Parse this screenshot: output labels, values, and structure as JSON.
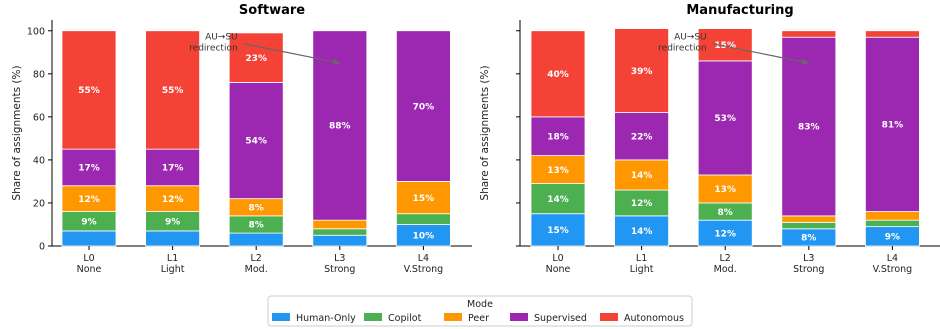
{
  "colors": {
    "Human-Only": "#2196f3",
    "Copilot": "#4caf50",
    "Peer": "#ff9800",
    "Supervised": "#9c27b0",
    "Autonomous": "#f44336",
    "arrow": "#666666"
  },
  "legend": {
    "title": "Mode",
    "items": [
      "Human-Only",
      "Copilot",
      "Peer",
      "Supervised",
      "Autonomous"
    ]
  },
  "chart_data": [
    {
      "type": "bar",
      "stacked": true,
      "title": "Software",
      "ylabel": "Share of assignments (%)",
      "ylim": [
        0,
        105
      ],
      "yticks": [
        0,
        20,
        40,
        60,
        80,
        100
      ],
      "categories": [
        "L0\nNone",
        "L1\nLight",
        "L2\nMod.",
        "L3\nStrong",
        "L4\nV.Strong"
      ],
      "series": [
        {
          "name": "Human-Only",
          "values": [
            7,
            7,
            6,
            5,
            10
          ]
        },
        {
          "name": "Copilot",
          "values": [
            9,
            9,
            8,
            3,
            5
          ]
        },
        {
          "name": "Peer",
          "values": [
            12,
            12,
            8,
            4,
            15
          ]
        },
        {
          "name": "Supervised",
          "values": [
            17,
            17,
            54,
            88,
            70
          ]
        },
        {
          "name": "Autonomous",
          "values": [
            55,
            55,
            23,
            0,
            0
          ]
        }
      ],
      "annotation": {
        "text": "AU→SU\nredirection",
        "from": {
          "x": 1.85,
          "y": 94
        },
        "to": {
          "x": 3,
          "y": 85
        }
      }
    },
    {
      "type": "bar",
      "stacked": true,
      "title": "Manufacturing",
      "ylabel": "Share of assignments (%)",
      "ylim": [
        0,
        105
      ],
      "yticks": [
        0,
        20,
        40,
        60,
        80,
        100
      ],
      "categories": [
        "L0\nNone",
        "L1\nLight",
        "L2\nMod.",
        "L3\nStrong",
        "L4\nV.Strong"
      ],
      "series": [
        {
          "name": "Human-Only",
          "values": [
            15,
            14,
            12,
            8,
            9
          ]
        },
        {
          "name": "Copilot",
          "values": [
            14,
            12,
            8,
            3,
            3
          ]
        },
        {
          "name": "Peer",
          "values": [
            13,
            14,
            13,
            3,
            4
          ]
        },
        {
          "name": "Supervised",
          "values": [
            18,
            22,
            53,
            83,
            81
          ]
        },
        {
          "name": "Autonomous",
          "values": [
            40,
            39,
            15,
            3,
            3
          ]
        }
      ],
      "annotation": {
        "text": "AU→SU\nredirection",
        "from": {
          "x": 1.85,
          "y": 94
        },
        "to": {
          "x": 3,
          "y": 85
        }
      }
    }
  ]
}
